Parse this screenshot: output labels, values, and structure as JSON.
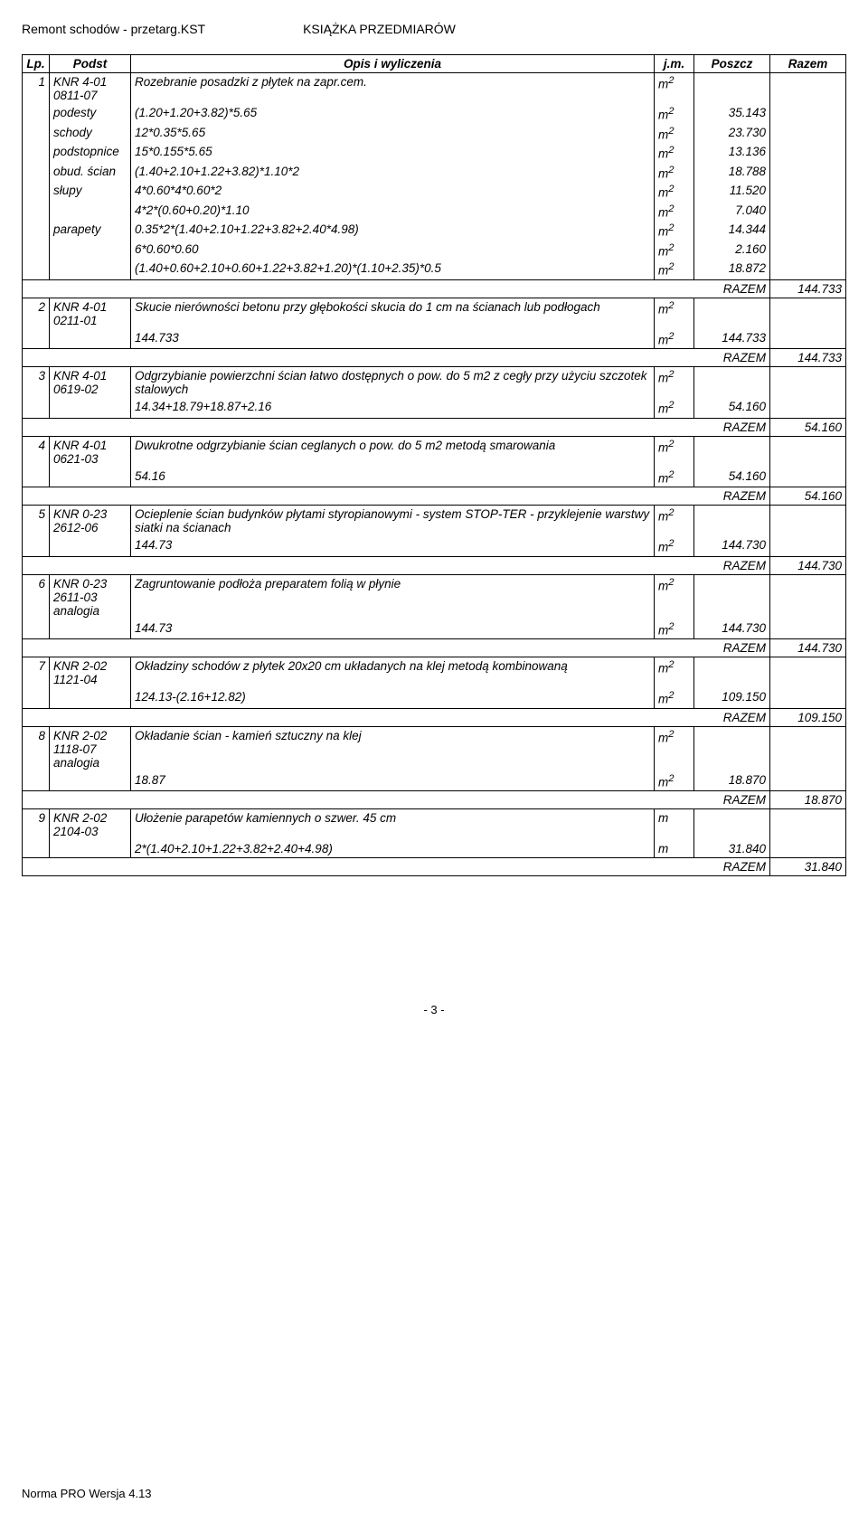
{
  "header": {
    "left": "Remont schodów - przetarg.KST",
    "right": "KSIĄŻKA PRZEDMIARÓW"
  },
  "columns": {
    "lp": "Lp.",
    "podst": "Podst",
    "opis": "Opis i wyliczenia",
    "jm": "j.m.",
    "poszcz": "Poszcz",
    "razem": "Razem"
  },
  "rows": [
    {
      "lp": "1",
      "podst": "KNR 4-01\n0811-07",
      "opis": "Rozebranie posadzki z płytek na zapr.cem.",
      "jm": "m2",
      "poszcz": "",
      "razem": "",
      "tb": "first"
    },
    {
      "lp": "",
      "podst": "podesty",
      "opis": "(1.20+1.20+3.82)*5.65",
      "jm": "m2",
      "poszcz": "35.143",
      "razem": "",
      "tb": "mid"
    },
    {
      "lp": "",
      "podst": "schody",
      "opis": "12*0.35*5.65",
      "jm": "m2",
      "poszcz": "23.730",
      "razem": "",
      "tb": "mid"
    },
    {
      "lp": "",
      "podst": "podstopnice",
      "opis": "15*0.155*5.65",
      "jm": "m2",
      "poszcz": "13.136",
      "razem": "",
      "tb": "mid"
    },
    {
      "lp": "",
      "podst": "obud. ścian",
      "opis": "(1.40+2.10+1.22+3.82)*1.10*2",
      "jm": "m2",
      "poszcz": "18.788",
      "razem": "",
      "tb": "mid"
    },
    {
      "lp": "",
      "podst": "słupy",
      "opis": "4*0.60*4*0.60*2",
      "jm": "m2",
      "poszcz": "11.520",
      "razem": "",
      "tb": "mid"
    },
    {
      "lp": "",
      "podst": "",
      "opis": "4*2*(0.60+0.20)*1.10",
      "jm": "m2",
      "poszcz": "7.040",
      "razem": "",
      "tb": "mid"
    },
    {
      "lp": "",
      "podst": "parapety",
      "opis": "0.35*2*(1.40+2.10+1.22+3.82+2.40*4.98)",
      "jm": "m2",
      "poszcz": "14.344",
      "razem": "",
      "tb": "mid"
    },
    {
      "lp": "",
      "podst": "",
      "opis": "6*0.60*0.60",
      "jm": "m2",
      "poszcz": "2.160",
      "razem": "",
      "tb": "mid"
    },
    {
      "lp": "",
      "podst": "",
      "opis": "(1.40+0.60+2.10+0.60+1.22+3.82+1.20)*(1.10+2.35)*0.5",
      "jm": "m2",
      "poszcz": "18.872",
      "razem": "",
      "tb": "last"
    },
    {
      "type": "razem",
      "label": "RAZEM",
      "razem": "144.733"
    },
    {
      "lp": "2",
      "podst": "KNR 4-01\n0211-01",
      "opis": "Skucie nierówności betonu przy głębokości skucia do 1 cm na ścianach lub podłogach",
      "jm": "m2",
      "poszcz": "",
      "razem": "",
      "tb": "first"
    },
    {
      "lp": "",
      "podst": "",
      "opis": "144.733",
      "jm": "m2",
      "poszcz": "144.733",
      "razem": "",
      "tb": "last"
    },
    {
      "type": "razem",
      "label": "RAZEM",
      "razem": "144.733"
    },
    {
      "lp": "3",
      "podst": "KNR 4-01\n0619-02",
      "opis": "Odgrzybianie powierzchni ścian łatwo dostępnych o pow. do 5 m2 z cegły przy użyciu szczotek stalowych",
      "jm": "m2",
      "poszcz": "",
      "razem": "",
      "tb": "first"
    },
    {
      "lp": "",
      "podst": "",
      "opis": "14.34+18.79+18.87+2.16",
      "jm": "m2",
      "poszcz": "54.160",
      "razem": "",
      "tb": "last"
    },
    {
      "type": "razem",
      "label": "RAZEM",
      "razem": "54.160"
    },
    {
      "lp": "4",
      "podst": "KNR 4-01\n0621-03",
      "opis": "Dwukrotne odgrzybianie ścian ceglanych o pow. do 5 m2 metodą smarowania",
      "jm": "m2",
      "poszcz": "",
      "razem": "",
      "tb": "first"
    },
    {
      "lp": "",
      "podst": "",
      "opis": "54.16",
      "jm": "m2",
      "poszcz": "54.160",
      "razem": "",
      "tb": "last"
    },
    {
      "type": "razem",
      "label": "RAZEM",
      "razem": "54.160"
    },
    {
      "lp": "5",
      "podst": "KNR 0-23\n2612-06",
      "opis": "Ocieplenie ścian budynków płytami styropianowymi - system STOP-TER - przyklejenie warstwy siatki na ścianach",
      "jm": "m2",
      "poszcz": "",
      "razem": "",
      "tb": "first"
    },
    {
      "lp": "",
      "podst": "",
      "opis": "144.73",
      "jm": "m2",
      "poszcz": "144.730",
      "razem": "",
      "tb": "last"
    },
    {
      "type": "razem",
      "label": "RAZEM",
      "razem": "144.730"
    },
    {
      "lp": "6",
      "podst": "KNR 0-23\n2611-03\nanalogia",
      "opis": "Zagruntowanie podłoża preparatem folią w płynie",
      "jm": "m2",
      "poszcz": "",
      "razem": "",
      "tb": "first"
    },
    {
      "lp": "",
      "podst": "",
      "opis": "144.73",
      "jm": "m2",
      "poszcz": "144.730",
      "razem": "",
      "tb": "last"
    },
    {
      "type": "razem",
      "label": "RAZEM",
      "razem": "144.730"
    },
    {
      "lp": "7",
      "podst": "KNR 2-02\n1121-04",
      "opis": "Okładziny schodów z płytek 20x20 cm układanych na klej metodą kombinowaną",
      "jm": "m2",
      "poszcz": "",
      "razem": "",
      "tb": "first"
    },
    {
      "lp": "",
      "podst": "",
      "opis": "124.13-(2.16+12.82)",
      "jm": "m2",
      "poszcz": "109.150",
      "razem": "",
      "tb": "last"
    },
    {
      "type": "razem",
      "label": "RAZEM",
      "razem": "109.150"
    },
    {
      "lp": "8",
      "podst": "KNR 2-02\n1118-07\nanalogia",
      "opis": "Okładanie ścian - kamień sztuczny  na klej",
      "jm": "m2",
      "poszcz": "",
      "razem": "",
      "tb": "first"
    },
    {
      "lp": "",
      "podst": "",
      "opis": "18.87",
      "jm": "m2",
      "poszcz": "18.870",
      "razem": "",
      "tb": "last"
    },
    {
      "type": "razem",
      "label": "RAZEM",
      "razem": "18.870"
    },
    {
      "lp": "9",
      "podst": "KNR 2-02\n2104-03",
      "opis": "Ułożenie parapetów kamiennych o szwer. 45 cm",
      "jm": "m",
      "poszcz": "",
      "razem": "",
      "tb": "first"
    },
    {
      "lp": "",
      "podst": "",
      "opis": "2*(1.40+2.10+1.22+3.82+2.40+4.98)",
      "jm": "m",
      "poszcz": "31.840",
      "razem": "",
      "tb": "last"
    },
    {
      "type": "razem",
      "label": "RAZEM",
      "razem": "31.840"
    }
  ],
  "page_num": "- 3 -",
  "footer": "Norma PRO Wersja 4.13"
}
